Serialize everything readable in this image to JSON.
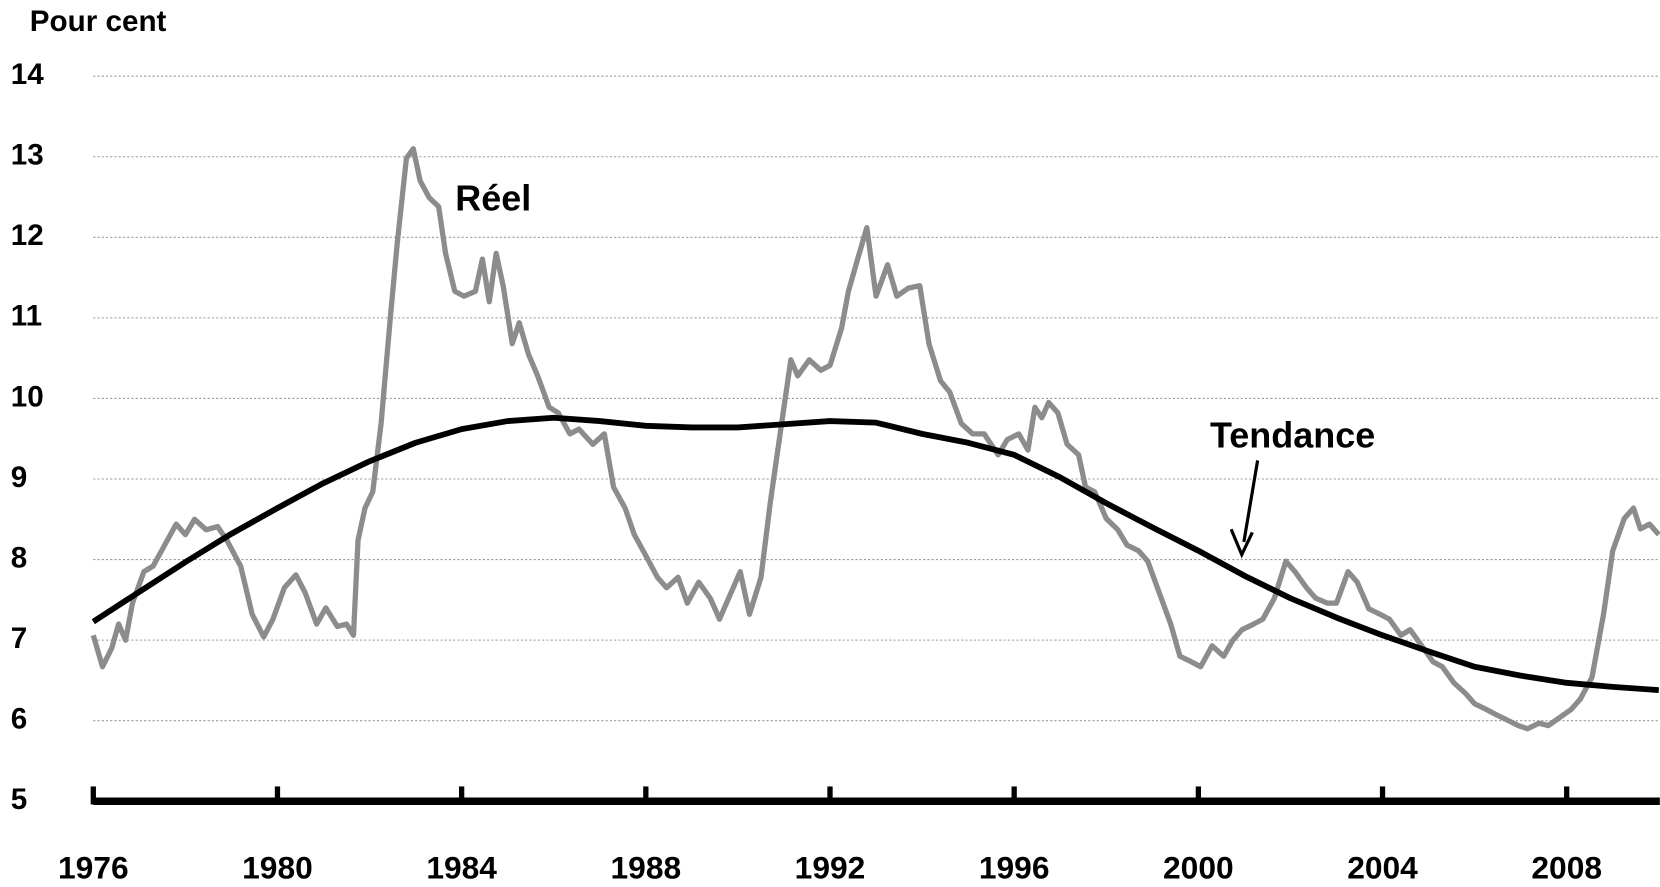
{
  "chart_data": {
    "type": "line",
    "y_label": "Pour cent",
    "annotations": [
      "Réel",
      "Tendance"
    ],
    "xlim": [
      1976,
      2010
    ],
    "xticks": [
      1976,
      1980,
      1984,
      1988,
      1992,
      1996,
      2000,
      2004,
      2008
    ],
    "ylim": [
      5,
      14
    ],
    "yticks": [
      5,
      6,
      7,
      8,
      9,
      10,
      11,
      12,
      13,
      14
    ],
    "grid": true,
    "series": [
      {
        "name": "Réel",
        "color": "#8c8c8c",
        "x": [
          1976.0,
          1976.2,
          1976.4,
          1976.55,
          1976.7,
          1976.85,
          1977.1,
          1977.3,
          1977.55,
          1977.8,
          1978.0,
          1978.2,
          1978.45,
          1978.7,
          1978.9,
          1979.2,
          1979.45,
          1979.7,
          1979.9,
          1980.15,
          1980.4,
          1980.6,
          1980.85,
          1981.05,
          1981.3,
          1981.5,
          1981.65,
          1981.75,
          1981.9,
          1982.07,
          1982.25,
          1982.45,
          1982.6,
          1982.8,
          1982.95,
          1983.1,
          1983.3,
          1983.5,
          1983.65,
          1983.85,
          1984.05,
          1984.3,
          1984.45,
          1984.6,
          1984.75,
          1984.9,
          1985.1,
          1985.25,
          1985.45,
          1985.65,
          1985.9,
          1986.1,
          1986.35,
          1986.55,
          1986.85,
          1987.1,
          1987.3,
          1987.55,
          1987.75,
          1988.0,
          1988.25,
          1988.45,
          1988.7,
          1988.9,
          1989.15,
          1989.4,
          1989.6,
          1989.85,
          1990.05,
          1990.25,
          1990.5,
          1990.7,
          1990.95,
          1991.15,
          1991.3,
          1991.55,
          1991.8,
          1992.0,
          1992.25,
          1992.4,
          1992.6,
          1992.8,
          1993.0,
          1993.25,
          1993.45,
          1993.7,
          1993.95,
          1994.15,
          1994.4,
          1994.6,
          1994.85,
          1995.1,
          1995.35,
          1995.65,
          1995.85,
          1996.1,
          1996.3,
          1996.45,
          1996.6,
          1996.75,
          1996.95,
          1997.15,
          1997.4,
          1997.55,
          1997.75,
          1998.0,
          1998.25,
          1998.45,
          1998.7,
          1998.9,
          1999.15,
          1999.4,
          1999.6,
          1999.85,
          2000.05,
          2000.3,
          2000.55,
          2000.75,
          2000.95,
          2001.2,
          2001.4,
          2001.65,
          2001.9,
          2002.1,
          2002.35,
          2002.55,
          2002.8,
          2003.0,
          2003.25,
          2003.45,
          2003.7,
          2003.95,
          2004.15,
          2004.4,
          2004.6,
          2004.85,
          2005.1,
          2005.3,
          2005.55,
          2005.8,
          2006.0,
          2006.25,
          2006.45,
          2006.7,
          2006.95,
          2007.15,
          2007.4,
          2007.6,
          2007.85,
          2008.1,
          2008.3,
          2008.55,
          2008.8,
          2009.0,
          2009.25,
          2009.45,
          2009.6,
          2009.8,
          2010.0
        ],
        "values": [
          7.06,
          6.67,
          6.9,
          7.2,
          7.0,
          7.46,
          7.85,
          7.92,
          8.18,
          8.44,
          8.31,
          8.5,
          8.37,
          8.41,
          8.24,
          7.92,
          7.32,
          7.04,
          7.26,
          7.65,
          7.81,
          7.59,
          7.2,
          7.4,
          7.17,
          7.2,
          7.06,
          8.24,
          8.64,
          8.84,
          9.69,
          11.0,
          11.92,
          12.98,
          13.1,
          12.7,
          12.49,
          12.38,
          11.8,
          11.33,
          11.27,
          11.33,
          11.73,
          11.2,
          11.8,
          11.4,
          10.68,
          10.94,
          10.55,
          10.28,
          9.89,
          9.82,
          9.56,
          9.62,
          9.43,
          9.56,
          8.9,
          8.64,
          8.31,
          8.05,
          7.78,
          7.65,
          7.78,
          7.46,
          7.72,
          7.52,
          7.26,
          7.59,
          7.85,
          7.32,
          7.78,
          8.7,
          9.69,
          10.48,
          10.28,
          10.48,
          10.35,
          10.41,
          10.87,
          11.33,
          11.73,
          12.12,
          11.27,
          11.66,
          11.27,
          11.37,
          11.4,
          10.68,
          10.22,
          10.08,
          9.69,
          9.56,
          9.56,
          9.3,
          9.49,
          9.56,
          9.36,
          9.89,
          9.76,
          9.95,
          9.82,
          9.43,
          9.3,
          8.9,
          8.84,
          8.51,
          8.37,
          8.18,
          8.11,
          7.98,
          7.59,
          7.2,
          6.8,
          6.73,
          6.67,
          6.93,
          6.8,
          7.0,
          7.13,
          7.2,
          7.26,
          7.52,
          7.98,
          7.85,
          7.65,
          7.52,
          7.46,
          7.46,
          7.85,
          7.72,
          7.39,
          7.32,
          7.26,
          7.06,
          7.13,
          6.93,
          6.73,
          6.67,
          6.47,
          6.34,
          6.21,
          6.14,
          6.08,
          6.01,
          5.94,
          5.9,
          5.97,
          5.94,
          6.04,
          6.14,
          6.27,
          6.54,
          7.32,
          8.11,
          8.51,
          8.64,
          8.38,
          8.44,
          8.31
        ]
      },
      {
        "name": "Tendance",
        "color": "#000000",
        "x": [
          1976,
          1977,
          1978,
          1979,
          1980,
          1981,
          1982,
          1983,
          1984,
          1985,
          1986,
          1987,
          1988,
          1989,
          1990,
          1991,
          1992,
          1993,
          1994,
          1995,
          1996,
          1997,
          1998,
          1999,
          2000,
          2001,
          2002,
          2003,
          2004,
          2005,
          2006,
          2007,
          2008,
          2009,
          2010
        ],
        "values": [
          7.23,
          7.6,
          7.97,
          8.32,
          8.64,
          8.95,
          9.22,
          9.45,
          9.62,
          9.72,
          9.76,
          9.72,
          9.66,
          9.64,
          9.64,
          9.68,
          9.72,
          9.7,
          9.56,
          9.45,
          9.3,
          9.02,
          8.7,
          8.4,
          8.11,
          7.8,
          7.52,
          7.28,
          7.06,
          6.86,
          6.67,
          6.56,
          6.47,
          6.42,
          6.38
        ]
      }
    ]
  }
}
